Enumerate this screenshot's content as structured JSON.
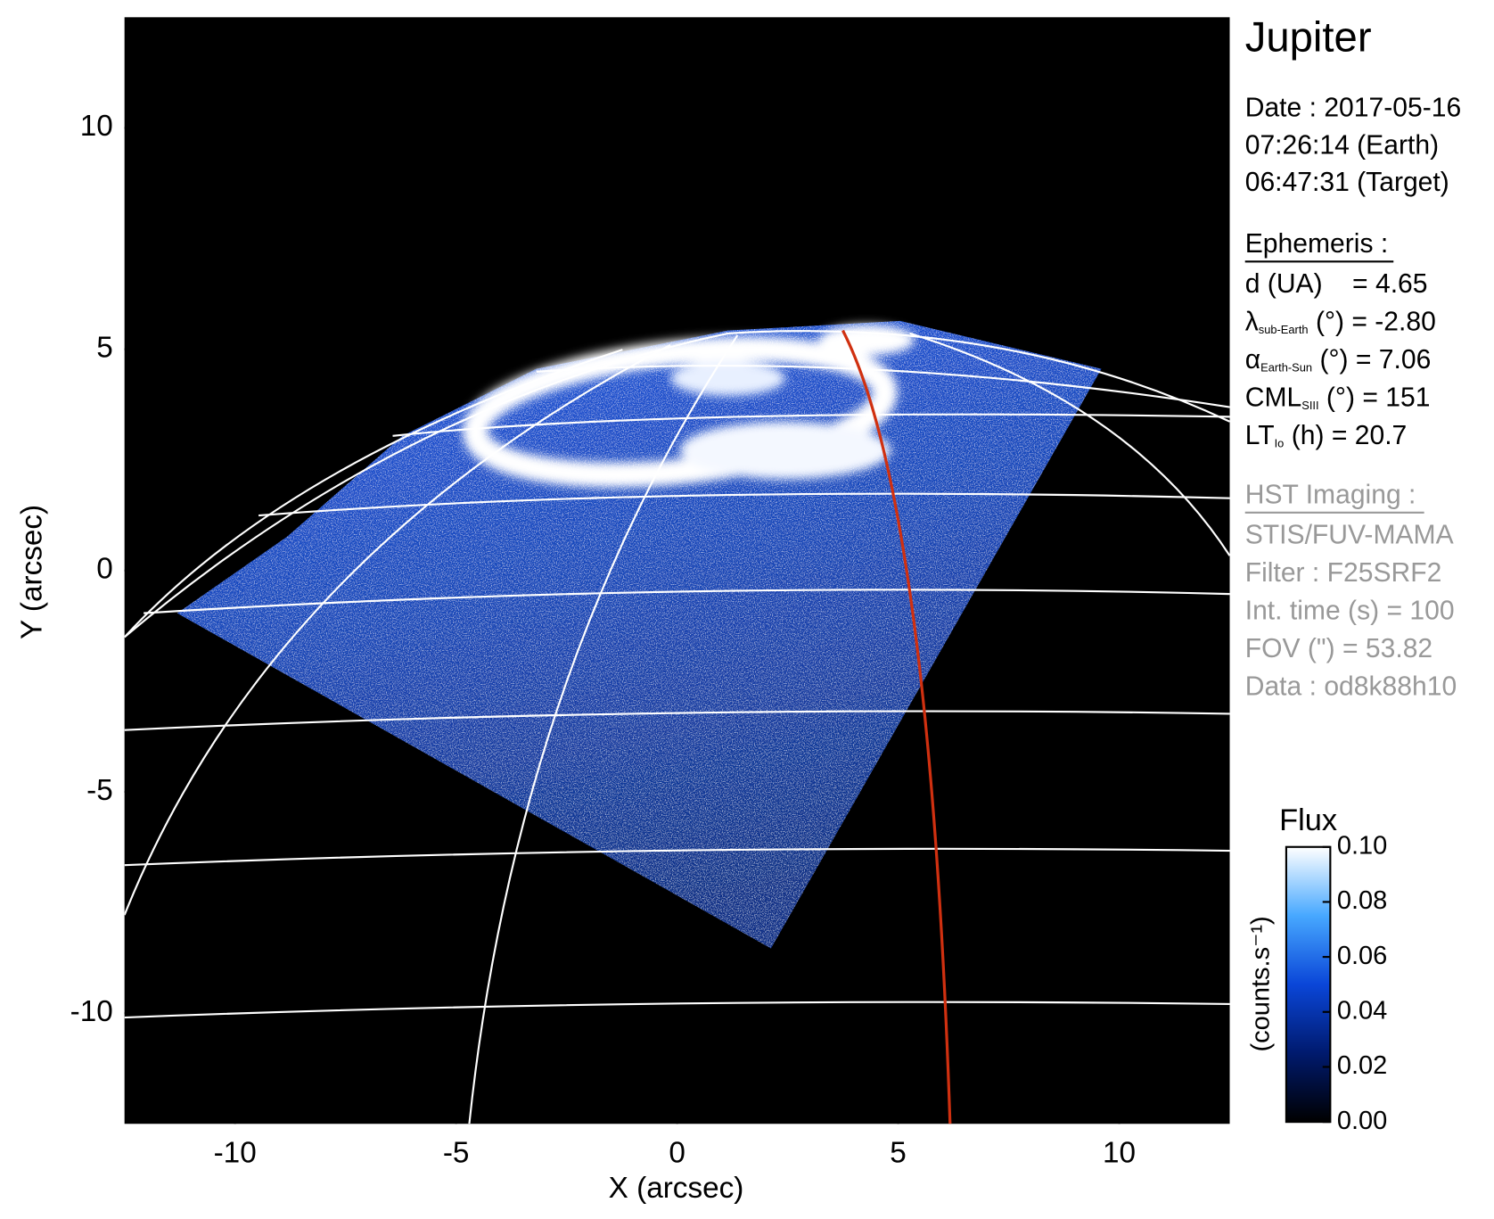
{
  "chart_data": {
    "type": "image",
    "xlabel": "X (arcsec)",
    "ylabel": "Y (arcsec)",
    "xlim": [
      -12.5,
      12.5
    ],
    "ylim": [
      -12.5,
      12.5
    ],
    "xticks": [
      -10,
      -5,
      0,
      5,
      10
    ],
    "yticks": [
      -10,
      -5,
      0,
      5,
      10
    ],
    "colorbar": {
      "title": "Flux",
      "label": "(counts.s⁻¹)",
      "clim": [
        0,
        0.1
      ],
      "ticks": [
        {
          "value": 0,
          "label": "0.00"
        },
        {
          "value": 0.02,
          "label": "0.02"
        },
        {
          "value": 0.04,
          "label": "0.04"
        },
        {
          "value": 0.06,
          "label": "0.06"
        },
        {
          "value": 0.08,
          "label": "0.08"
        },
        {
          "value": 0.1,
          "label": "0.10"
        }
      ],
      "colors": [
        "#000000",
        "#001a6e",
        "#0a46d8",
        "#47a8ff",
        "#ffffff"
      ]
    }
  },
  "info": {
    "title": "Jupiter",
    "date_lines": [
      "Date : 2017-05-16",
      "07:26:14 (Earth)",
      "06:47:31 (Target)"
    ],
    "ephemeris": {
      "heading": "Ephemeris :",
      "items": [
        {
          "label": "d (UA)    = 4.65"
        },
        {
          "label": "λ",
          "sub": "sub-Earth",
          "text": " (°) = -2.80"
        },
        {
          "label": "α",
          "sub": "Earth-Sun",
          "text": " (°) = 7.06"
        },
        {
          "label": "CML",
          "sub": "SIII",
          "text": " (°) = 151"
        },
        {
          "label": "LT",
          "sub": "Io",
          "text": " (h) = 20.7"
        }
      ]
    },
    "imaging": {
      "heading": "HST Imaging :",
      "items": [
        "STIS/FUV-MAMA",
        "Filter : F25SRF2",
        "Int. time (s) = 100",
        "FOV (\") = 53.82",
        "Data : od8k88h10"
      ]
    }
  }
}
